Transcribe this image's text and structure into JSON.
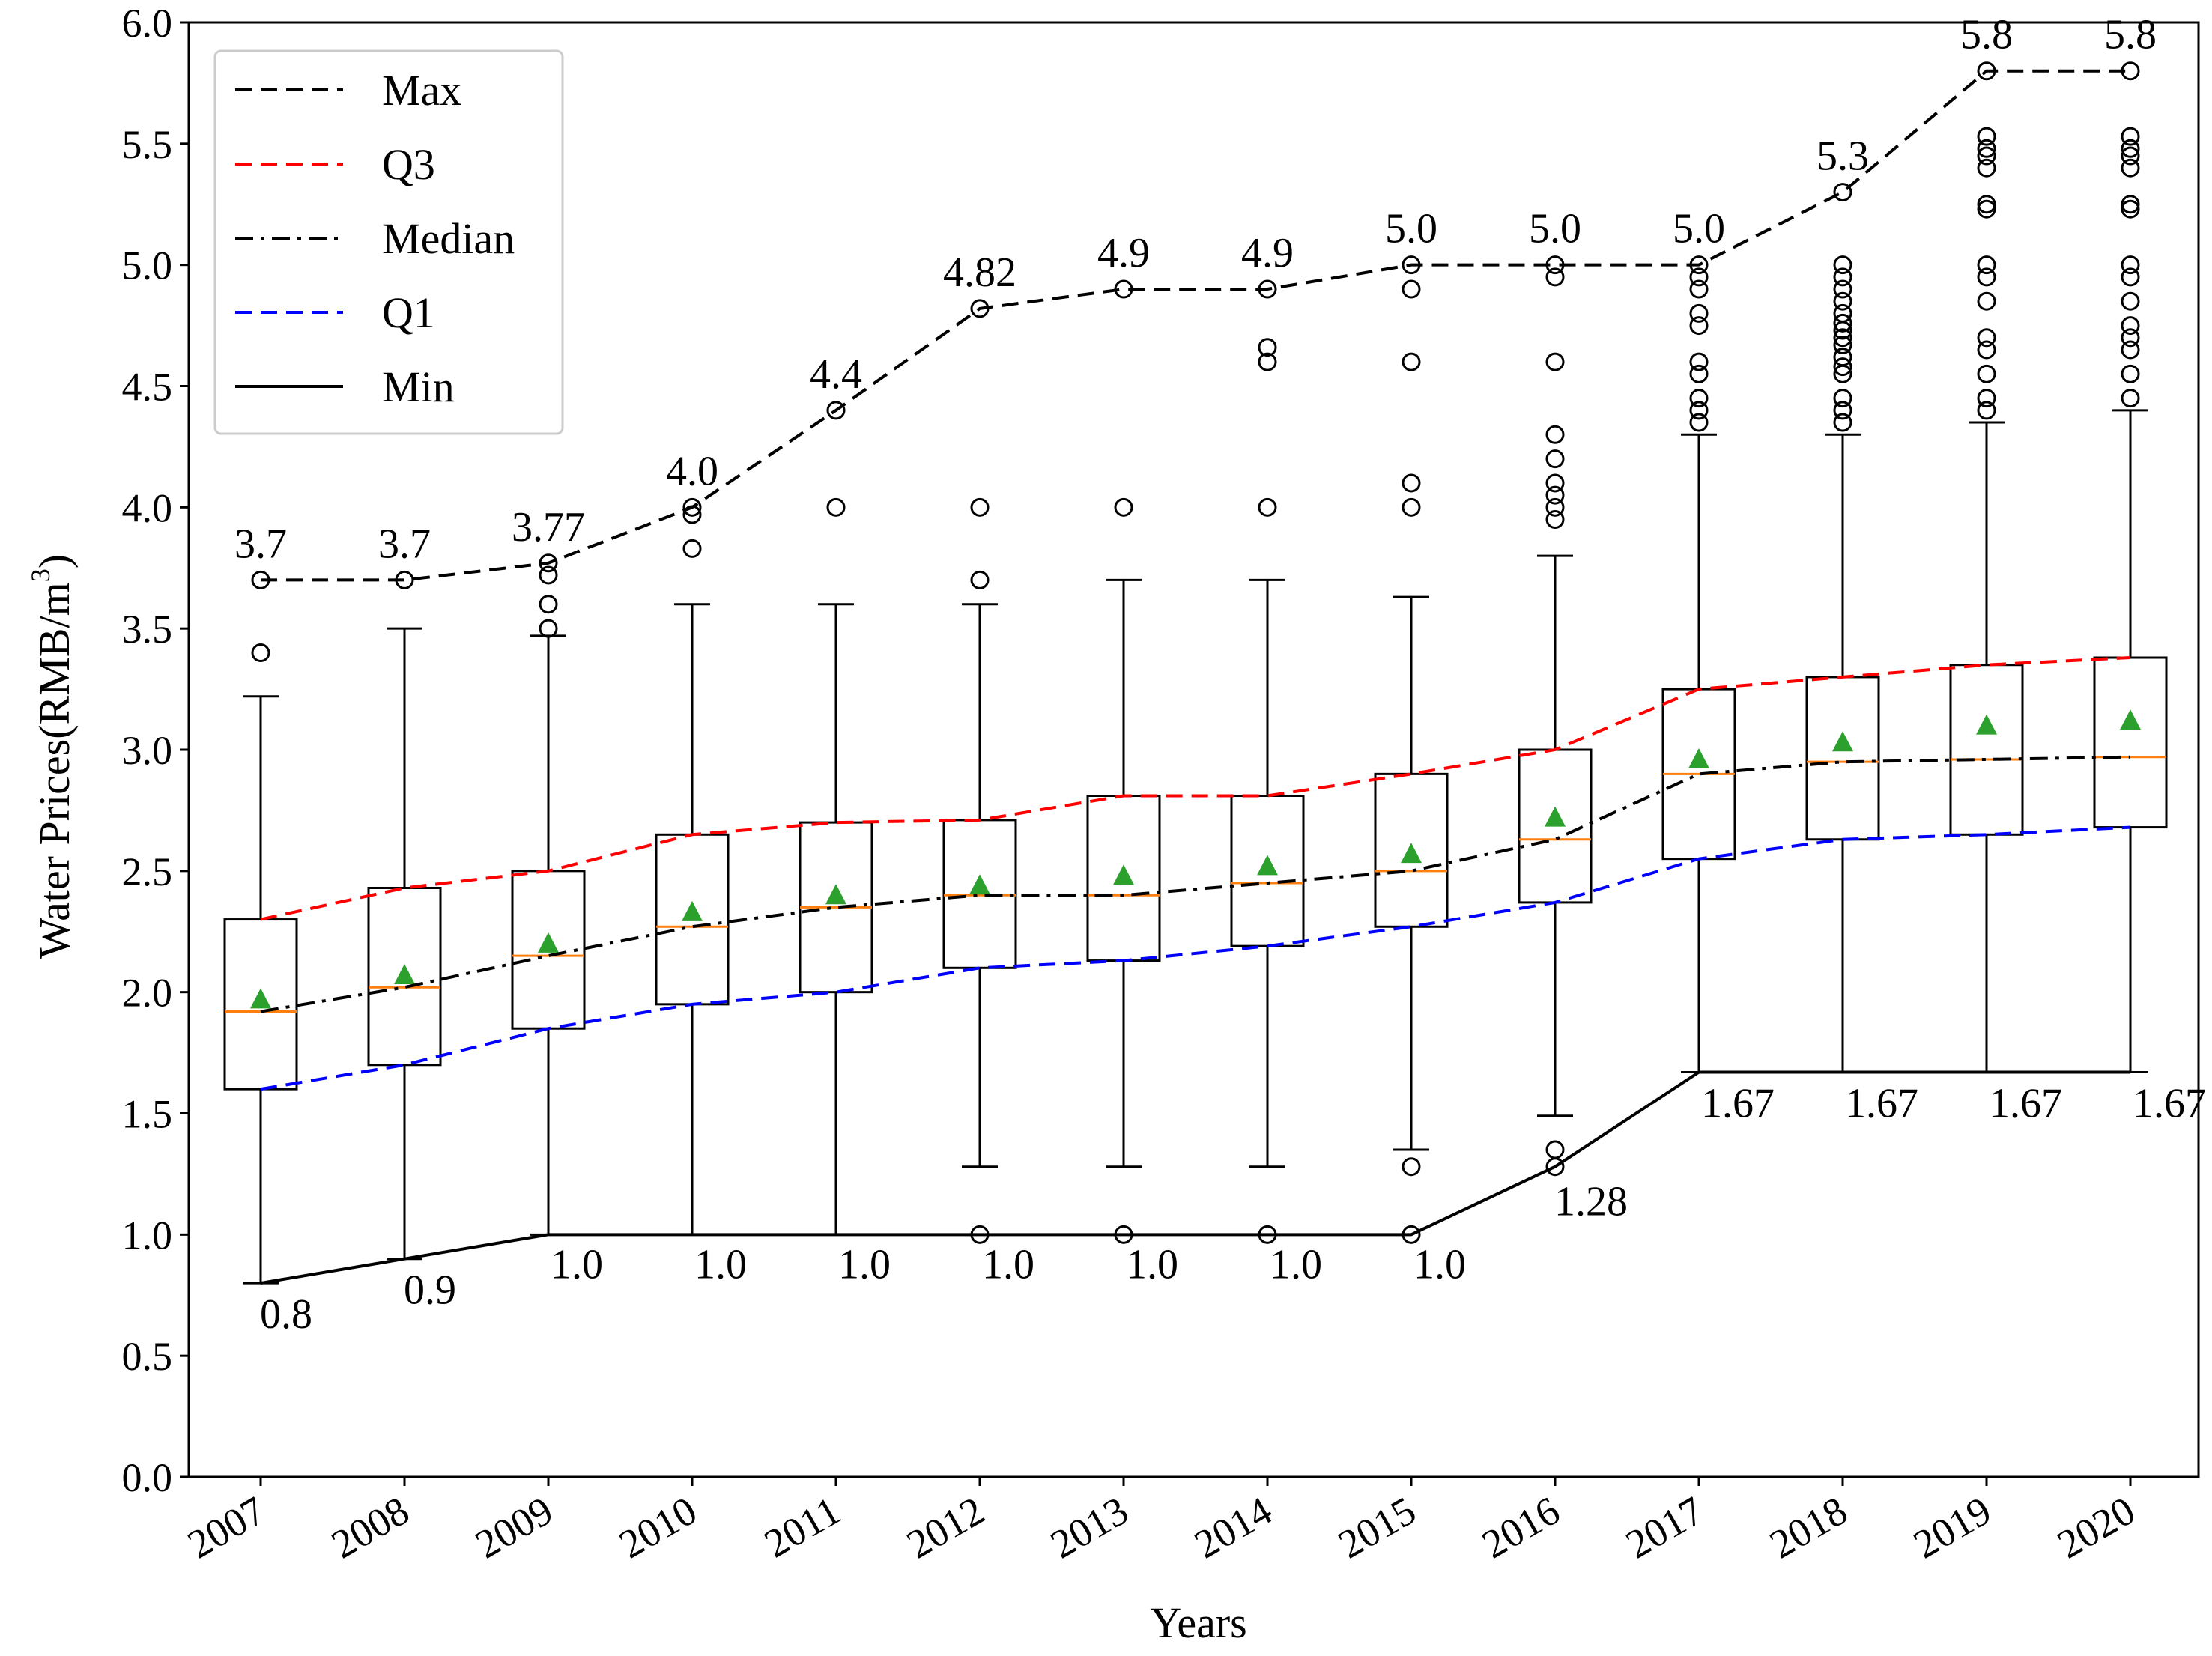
{
  "chart_data": {
    "type": "box",
    "xlabel": "Years",
    "ylabel": "Water Prices(RMB/m",
    "ylabel_superscript": "3",
    "ylabel_close": ")",
    "ylim": [
      0,
      6
    ],
    "yticks": [
      0.0,
      0.5,
      1.0,
      1.5,
      2.0,
      2.5,
      3.0,
      3.5,
      4.0,
      4.5,
      5.0,
      5.5,
      6.0
    ],
    "ytick_labels": [
      "0.0",
      "0.5",
      "1.0",
      "1.5",
      "2.0",
      "2.5",
      "3.0",
      "3.5",
      "4.0",
      "4.5",
      "5.0",
      "5.5",
      "6.0"
    ],
    "categories": [
      "2007",
      "2008",
      "2009",
      "2010",
      "2011",
      "2012",
      "2013",
      "2014",
      "2015",
      "2016",
      "2017",
      "2018",
      "2019",
      "2020"
    ],
    "boxes": [
      {
        "year": "2007",
        "q1": 1.6,
        "median": 1.92,
        "q3": 2.3,
        "mean": 1.97,
        "whisker_low": 0.8,
        "whisker_high": 3.22,
        "outliers": [
          3.4,
          3.7
        ]
      },
      {
        "year": "2008",
        "q1": 1.7,
        "median": 2.02,
        "q3": 2.43,
        "mean": 2.07,
        "whisker_low": 0.9,
        "whisker_high": 3.5,
        "outliers": [
          3.7
        ]
      },
      {
        "year": "2009",
        "q1": 1.85,
        "median": 2.15,
        "q3": 2.5,
        "mean": 2.2,
        "whisker_low": 1.0,
        "whisker_high": 3.47,
        "outliers": [
          3.5,
          3.6,
          3.72,
          3.77
        ]
      },
      {
        "year": "2010",
        "q1": 1.95,
        "median": 2.27,
        "q3": 2.65,
        "mean": 2.33,
        "whisker_low": 1.0,
        "whisker_high": 3.6,
        "outliers": [
          3.83,
          3.97,
          4.0
        ]
      },
      {
        "year": "2011",
        "q1": 2.0,
        "median": 2.35,
        "q3": 2.7,
        "mean": 2.4,
        "whisker_low": 1.0,
        "whisker_high": 3.6,
        "outliers": [
          4.0,
          4.4
        ]
      },
      {
        "year": "2012",
        "q1": 2.1,
        "median": 2.4,
        "q3": 2.71,
        "mean": 2.44,
        "whisker_low": 1.28,
        "whisker_high": 3.6,
        "outliers": [
          1.0,
          3.7,
          4.0,
          4.82
        ]
      },
      {
        "year": "2013",
        "q1": 2.13,
        "median": 2.4,
        "q3": 2.81,
        "mean": 2.48,
        "whisker_low": 1.28,
        "whisker_high": 3.7,
        "outliers": [
          1.0,
          4.0,
          4.9
        ]
      },
      {
        "year": "2014",
        "q1": 2.19,
        "median": 2.45,
        "q3": 2.81,
        "mean": 2.52,
        "whisker_low": 1.28,
        "whisker_high": 3.7,
        "outliers": [
          1.0,
          4.0,
          4.6,
          4.66,
          4.9
        ]
      },
      {
        "year": "2015",
        "q1": 2.27,
        "median": 2.5,
        "q3": 2.9,
        "mean": 2.57,
        "whisker_low": 1.35,
        "whisker_high": 3.63,
        "outliers": [
          1.0,
          1.28,
          4.0,
          4.1,
          4.6,
          4.9,
          5.0
        ]
      },
      {
        "year": "2016",
        "q1": 2.37,
        "median": 2.63,
        "q3": 3.0,
        "mean": 2.72,
        "whisker_low": 1.49,
        "whisker_high": 3.8,
        "outliers": [
          1.28,
          1.35,
          3.95,
          4.0,
          4.05,
          4.1,
          4.2,
          4.3,
          4.6,
          4.95,
          5.0
        ]
      },
      {
        "year": "2017",
        "q1": 2.55,
        "median": 2.9,
        "q3": 3.25,
        "mean": 2.96,
        "whisker_low": 1.67,
        "whisker_high": 4.3,
        "outliers": [
          4.35,
          4.4,
          4.45,
          4.55,
          4.6,
          4.75,
          4.8,
          4.9,
          4.95,
          5.0
        ]
      },
      {
        "year": "2018",
        "q1": 2.63,
        "median": 2.95,
        "q3": 3.3,
        "mean": 3.03,
        "whisker_low": 1.67,
        "whisker_high": 4.3,
        "outliers": [
          4.35,
          4.4,
          4.45,
          4.55,
          4.58,
          4.62,
          4.67,
          4.7,
          4.73,
          4.76,
          4.8,
          4.85,
          4.9,
          4.95,
          5.0,
          5.3
        ]
      },
      {
        "year": "2019",
        "q1": 2.65,
        "median": 2.96,
        "q3": 3.35,
        "mean": 3.1,
        "whisker_low": 1.67,
        "whisker_high": 4.35,
        "outliers": [
          4.4,
          4.45,
          4.55,
          4.65,
          4.7,
          4.85,
          4.95,
          5.0,
          5.23,
          5.25,
          5.4,
          5.45,
          5.48,
          5.53,
          5.8
        ]
      },
      {
        "year": "2020",
        "q1": 2.68,
        "median": 2.97,
        "q3": 3.38,
        "mean": 3.12,
        "whisker_low": 1.67,
        "whisker_high": 4.4,
        "outliers": [
          4.45,
          4.55,
          4.65,
          4.7,
          4.75,
          4.85,
          4.95,
          5.0,
          5.23,
          5.25,
          5.4,
          5.45,
          5.48,
          5.53,
          5.8
        ]
      }
    ],
    "trend_lines": [
      {
        "name": "Max",
        "color": "#000000",
        "style": "dashed",
        "values": [
          3.7,
          3.7,
          3.77,
          4.0,
          4.4,
          4.82,
          4.9,
          4.9,
          5.0,
          5.0,
          5.0,
          5.3,
          5.8,
          5.8
        ]
      },
      {
        "name": "Q3",
        "color": "#ff0000",
        "style": "dashed",
        "values": [
          2.3,
          2.43,
          2.5,
          2.65,
          2.7,
          2.71,
          2.81,
          2.81,
          2.9,
          3.0,
          3.25,
          3.3,
          3.35,
          3.38
        ]
      },
      {
        "name": "Median",
        "color": "#000000",
        "style": "dashdot",
        "values": [
          1.92,
          2.02,
          2.15,
          2.27,
          2.35,
          2.4,
          2.4,
          2.45,
          2.5,
          2.63,
          2.9,
          2.95,
          2.96,
          2.97
        ]
      },
      {
        "name": "Q1",
        "color": "#0000ff",
        "style": "dashed",
        "values": [
          1.6,
          1.7,
          1.85,
          1.95,
          2.0,
          2.1,
          2.13,
          2.19,
          2.27,
          2.37,
          2.55,
          2.63,
          2.65,
          2.68
        ]
      },
      {
        "name": "Min",
        "color": "#000000",
        "style": "solid",
        "values": [
          0.8,
          0.9,
          1.0,
          1.0,
          1.0,
          1.0,
          1.0,
          1.0,
          1.0,
          1.28,
          1.67,
          1.67,
          1.67,
          1.67
        ]
      }
    ],
    "max_labels": [
      "3.7",
      "3.7",
      "3.77",
      "4.0",
      "4.4",
      "4.82",
      "4.9",
      "4.9",
      "5.0",
      "5.0",
      "5.0",
      "5.3",
      "5.8",
      "5.8"
    ],
    "min_labels": [
      "0.8",
      "0.9",
      "1.0",
      "1.0",
      "1.0",
      "1.0",
      "1.0",
      "1.0",
      "1.0",
      "1.28",
      "1.67",
      "1.67",
      "1.67",
      "1.67"
    ],
    "legend": {
      "position": "top-left",
      "entries": [
        "Max",
        "Q3",
        "Median",
        "Q1",
        "Min"
      ]
    },
    "colors": {
      "median_line": "#ff7f0e",
      "mean_marker": "#2ca02c",
      "box": "#000000"
    }
  }
}
